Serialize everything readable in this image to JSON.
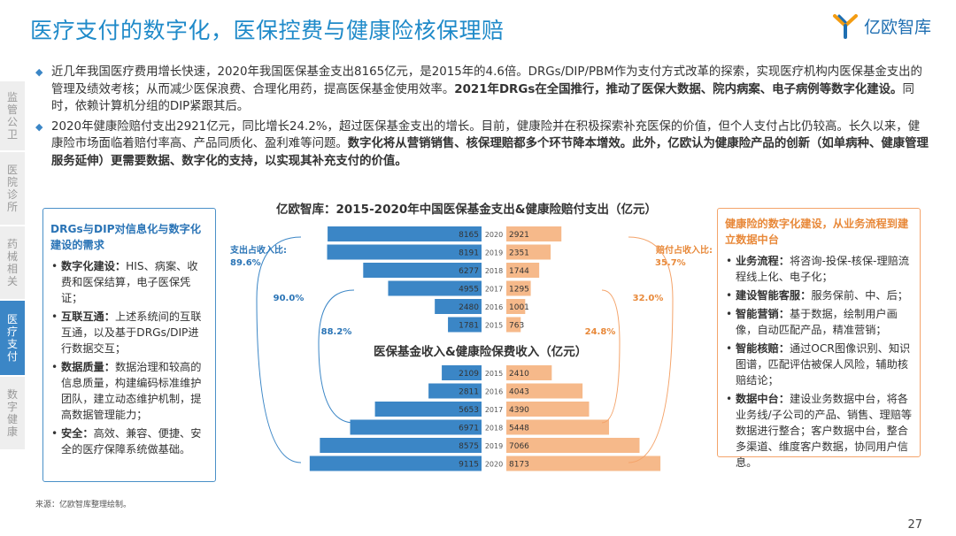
{
  "title": "医疗支付的数字化，医保控费与健康险核保理赔",
  "logo": {
    "text": "亿欧智库"
  },
  "sidebar": {
    "items": [
      {
        "label": "监管公卫",
        "active": false
      },
      {
        "label": "医院诊所",
        "active": false
      },
      {
        "label": "药械相关",
        "active": false
      },
      {
        "label": "医疗支付",
        "active": true
      },
      {
        "label": "数字健康",
        "active": false
      }
    ]
  },
  "bullets": {
    "b1_normal": "近几年我国医疗费用增长快速，2020年我国医保基金支出8165亿元，是2015年的4.6倍。DRGs/DIP/PBM作为支付方式改革的探索，实现医疗机构内医保基金支出的管理及绩效考核；从而减少医保浪费、合理化用药，提高医保基金使用效率。",
    "b1_bold": "2021年DRGs在全国推行，推动了医保大数据、院内病案、电子病例等数字化建设。",
    "b1_tail": "同时，依赖计算机分组的DIP紧跟其后。",
    "b2_normal": "2020年健康险赔付支出2921亿元，同比增长24.2%，超过医保基金支出的增长。目前，健康险并在积极探索补充医保的价值，但个人支付占比仍较高。长久以来，健康险市场面临着赔付率高、产品同质化、盈利难等问题。",
    "b2_bold": "数字化将从营销销售、核保理赔都多个环节降本增效。此外，亿欧认为健康险产品的创新（如单病种、健康管理服务延伸）更需要数据、数字化的支持，以实现其补充支付的价值。"
  },
  "left_box": {
    "title": "DRGs与DIP对信息化与数字化建设的需求",
    "items": [
      {
        "head": "数字化建设：",
        "text": "HIS、病案、收费和医保结算，电子医保凭证；"
      },
      {
        "head": "互联互通：",
        "text": "上述系统间的互联互通，以及基于DRGs/DIP进行数据交互；"
      },
      {
        "head": "数据质量：",
        "text": "数据治理和较高的信息质量，构建编码标准维护团队，建立动态维护机制，提高数据管理能力；"
      },
      {
        "head": "安全：",
        "text": "高效、兼容、便捷、安全的医疗保障系统做基础。"
      }
    ]
  },
  "right_box": {
    "title": "健康险的数字化建设，从业务流程到建立数据中台",
    "items": [
      {
        "head": "业务流程：",
        "text": "将咨询-投保-核保-理赔流程线上化、电子化；"
      },
      {
        "head": "建设智能客服：",
        "text": "服务保前、中、后；"
      },
      {
        "head": "智能营销：",
        "text": "基于数据，绘制用户画像，自动匹配产品，精准营销；"
      },
      {
        "head": "智能核赔：",
        "text": "通过OCR图像识别、知识图谱，匹配评估被保人风险，辅助核赔结论；"
      },
      {
        "head": "数据中台：",
        "text": "建设业务数据中台，将各业务线/子公司的产品、销售、理赔等数据进行整合；客户数据中台，整合多渠道、维度客户数据，协同用户信息。"
      }
    ]
  },
  "chart_data": [
    {
      "type": "bar",
      "title": "亿欧智库：2015-2020年中国医保基金支出&健康险赔付支出（亿元）",
      "categories": [
        "2020",
        "2019",
        "2018",
        "2017",
        "2016",
        "2015"
      ],
      "series": [
        {
          "values": [
            8165,
            8191,
            6277,
            4955,
            2480,
            1781
          ],
          "color": "#3b86c6"
        },
        {
          "values": [
            2921,
            2351,
            1744,
            1295,
            1001,
            763
          ],
          "color": "#f6b98a"
        }
      ],
      "annotations": {
        "left_label": "支出占收入比:",
        "left_value": "89.6%",
        "right_label": "赔付占收入比:",
        "right_value": "35.7%",
        "left_mid": "90.0%",
        "right_mid": "32.0%",
        "left_low": "88.2%",
        "right_low": "24.8%"
      }
    },
    {
      "type": "bar",
      "title": "医保基金收入&健康险保费收入（亿元）",
      "categories": [
        "2015",
        "2016",
        "2017",
        "2018",
        "2019",
        "2020"
      ],
      "series": [
        {
          "values": [
            2109,
            2811,
            5653,
            6971,
            8575,
            9115
          ],
          "color": "#3b86c6"
        },
        {
          "values": [
            2410,
            4043,
            4390,
            5448,
            7066,
            8173
          ],
          "color": "#f6b98a"
        }
      ]
    }
  ],
  "footnote": "来源：亿欧智库整理绘制。",
  "page_number": "27",
  "colors": {
    "blue": "#3b86c6",
    "orange": "#f6b98a",
    "title": "#1f8ac9"
  }
}
